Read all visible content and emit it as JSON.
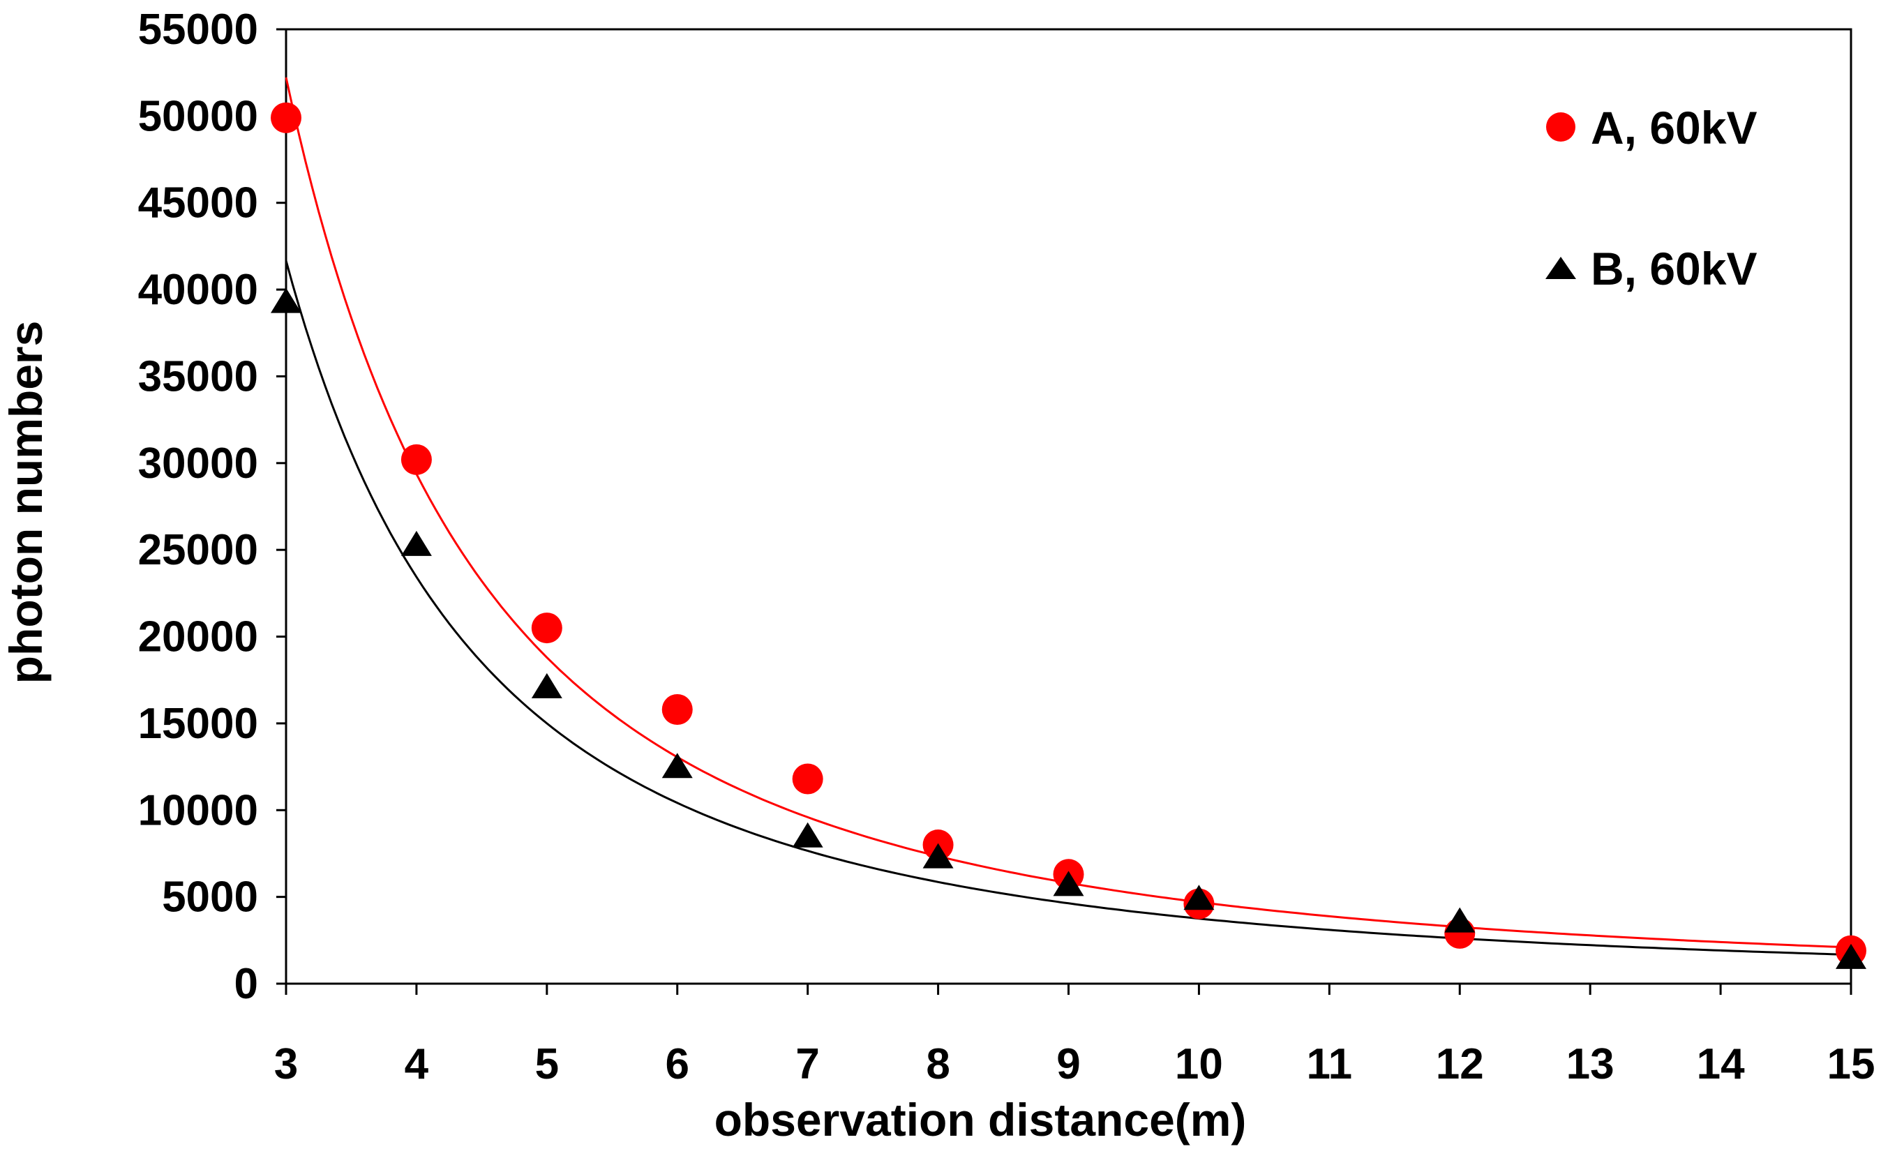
{
  "chart_data": {
    "type": "scatter",
    "title": "",
    "xlabel": "observation distance(m)",
    "ylabel": "photon numbers",
    "xlim": [
      3,
      15
    ],
    "ylim": [
      0,
      55000
    ],
    "x_ticks": [
      3,
      4,
      5,
      6,
      7,
      8,
      9,
      10,
      11,
      12,
      13,
      14,
      15
    ],
    "y_ticks": [
      0,
      5000,
      10000,
      15000,
      20000,
      25000,
      30000,
      35000,
      40000,
      45000,
      50000,
      55000
    ],
    "grid": false,
    "legend_position": "top-right",
    "series": [
      {
        "name": "A, 60kV",
        "marker": "circle",
        "color": "#ff0000",
        "x": [
          3,
          4,
          5,
          6,
          7,
          8,
          9,
          10,
          12,
          15
        ],
        "y": [
          49900,
          30200,
          20500,
          15800,
          11800,
          8000,
          6300,
          4600,
          2900,
          1900
        ],
        "fit": {
          "type": "power",
          "a": 470000,
          "b": -2.0,
          "color": "#ff0000"
        }
      },
      {
        "name": "B, 60kV",
        "marker": "triangle",
        "color": "#000000",
        "x": [
          3,
          4,
          5,
          6,
          7,
          8,
          9,
          10,
          12,
          15
        ],
        "y": [
          39200,
          25200,
          17000,
          12400,
          8400,
          7200,
          5600,
          4800,
          3500,
          1400
        ],
        "fit": {
          "type": "power",
          "a": 375000,
          "b": -2.0,
          "color": "#000000"
        }
      }
    ]
  }
}
